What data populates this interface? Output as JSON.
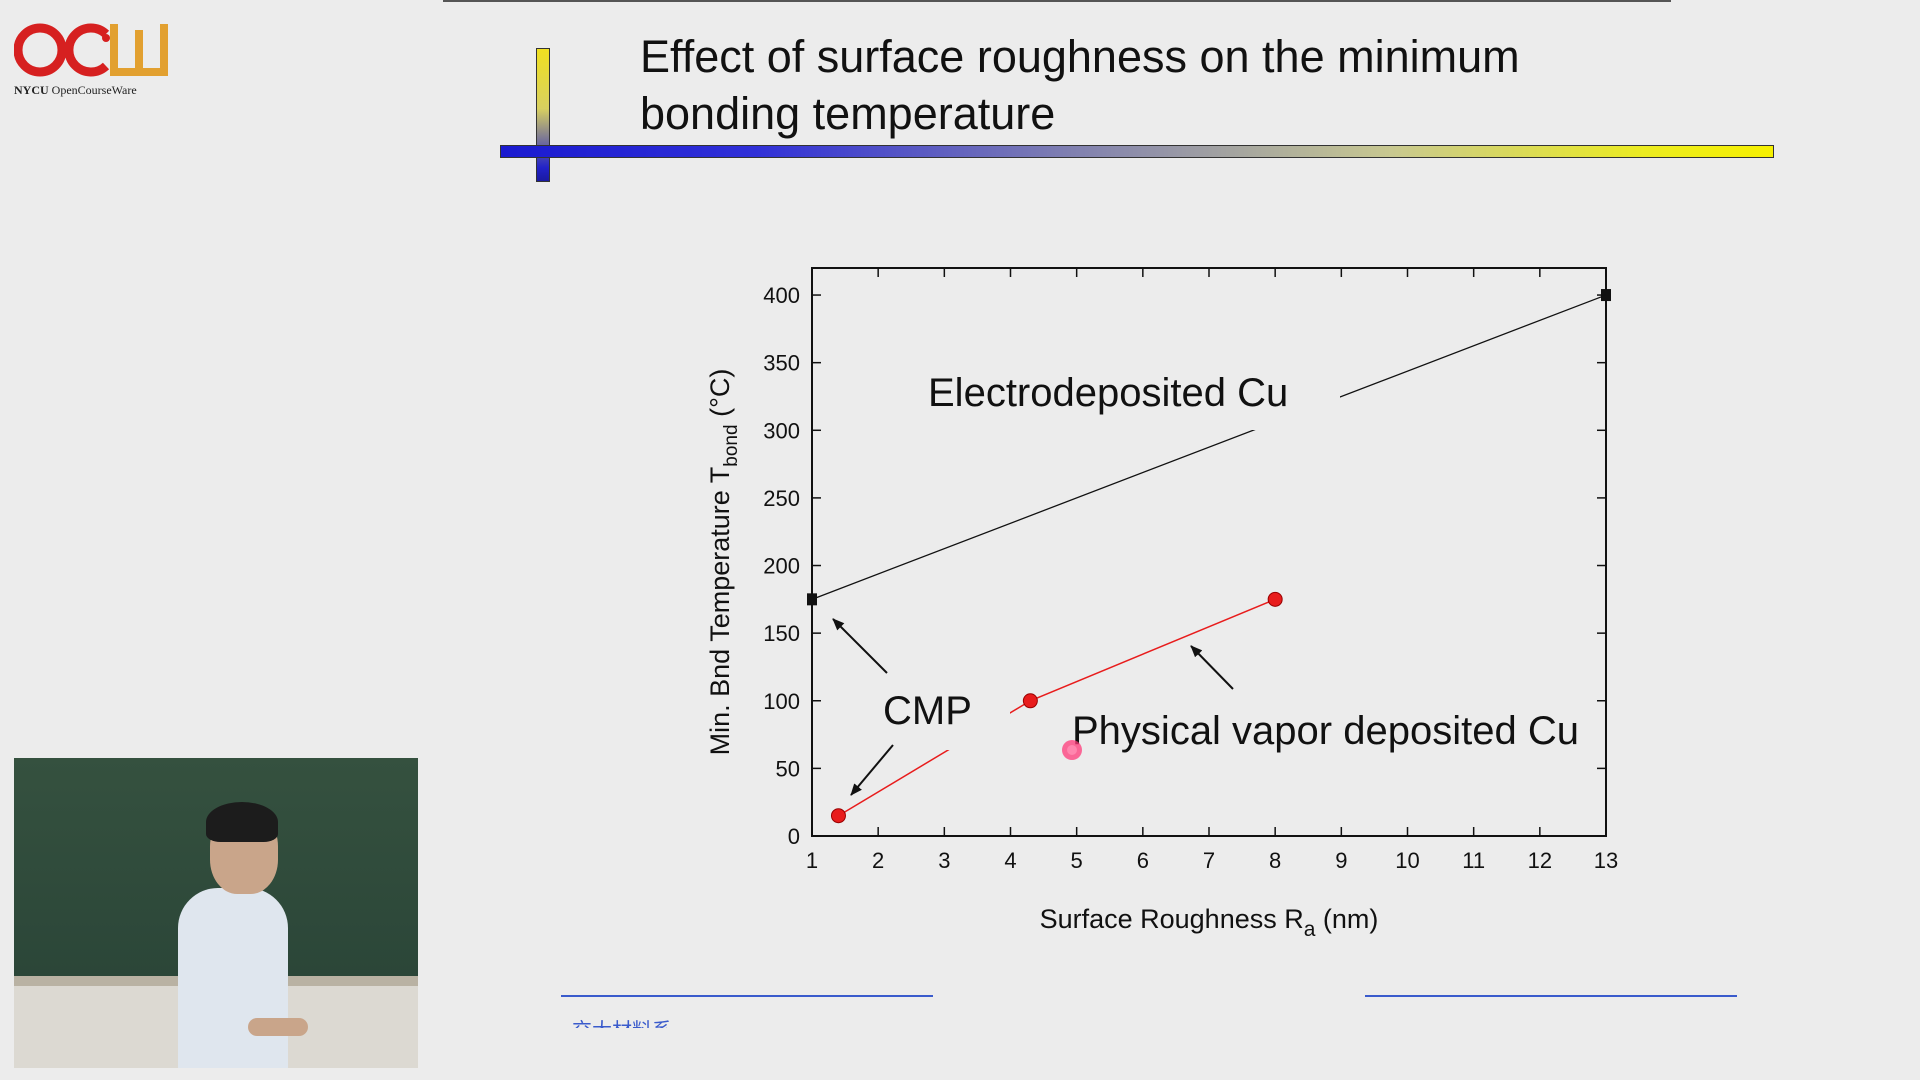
{
  "logo": {
    "letters": "OCW",
    "brand": "NYCU",
    "text": "OpenCourseWare"
  },
  "slide": {
    "title_line1": "Effect of surface roughness on the minimum",
    "title_line2": "bonding temperature",
    "footer_text": "交大材料系"
  },
  "colors": {
    "red_series": "#e81c1c",
    "black_series": "#111111",
    "accent_blue": "#3a5bcc"
  },
  "chart_data": {
    "type": "line",
    "xlabel_main": "Surface Roughness R",
    "xlabel_sub": "a",
    "xlabel_tail": " (nm)",
    "ylabel_main": "Min. Bnd Temperature T",
    "ylabel_sub": "bond",
    "ylabel_tail": " (°C)",
    "xlim": [
      1,
      13
    ],
    "ylim": [
      0,
      420
    ],
    "xticks": [
      "1",
      "2",
      "3",
      "4",
      "5",
      "6",
      "7",
      "8",
      "9",
      "10",
      "11",
      "12",
      "13"
    ],
    "yticks": [
      "0",
      "50",
      "100",
      "150",
      "200",
      "250",
      "300",
      "350",
      "400"
    ],
    "series": [
      {
        "name": "Electrodeposited Cu",
        "marker": "square",
        "color": "#111111",
        "x": [
          1,
          13
        ],
        "y": [
          175,
          400
        ]
      },
      {
        "name": "Physical vapor deposited Cu",
        "marker": "circle",
        "color": "#e81c1c",
        "x": [
          1.4,
          4.3,
          8
        ],
        "y": [
          15,
          100,
          175
        ]
      }
    ],
    "annotations": {
      "electro": "Electrodeposited Cu",
      "cmp": "CMP",
      "pvd": "Physical vapor deposited Cu"
    }
  }
}
